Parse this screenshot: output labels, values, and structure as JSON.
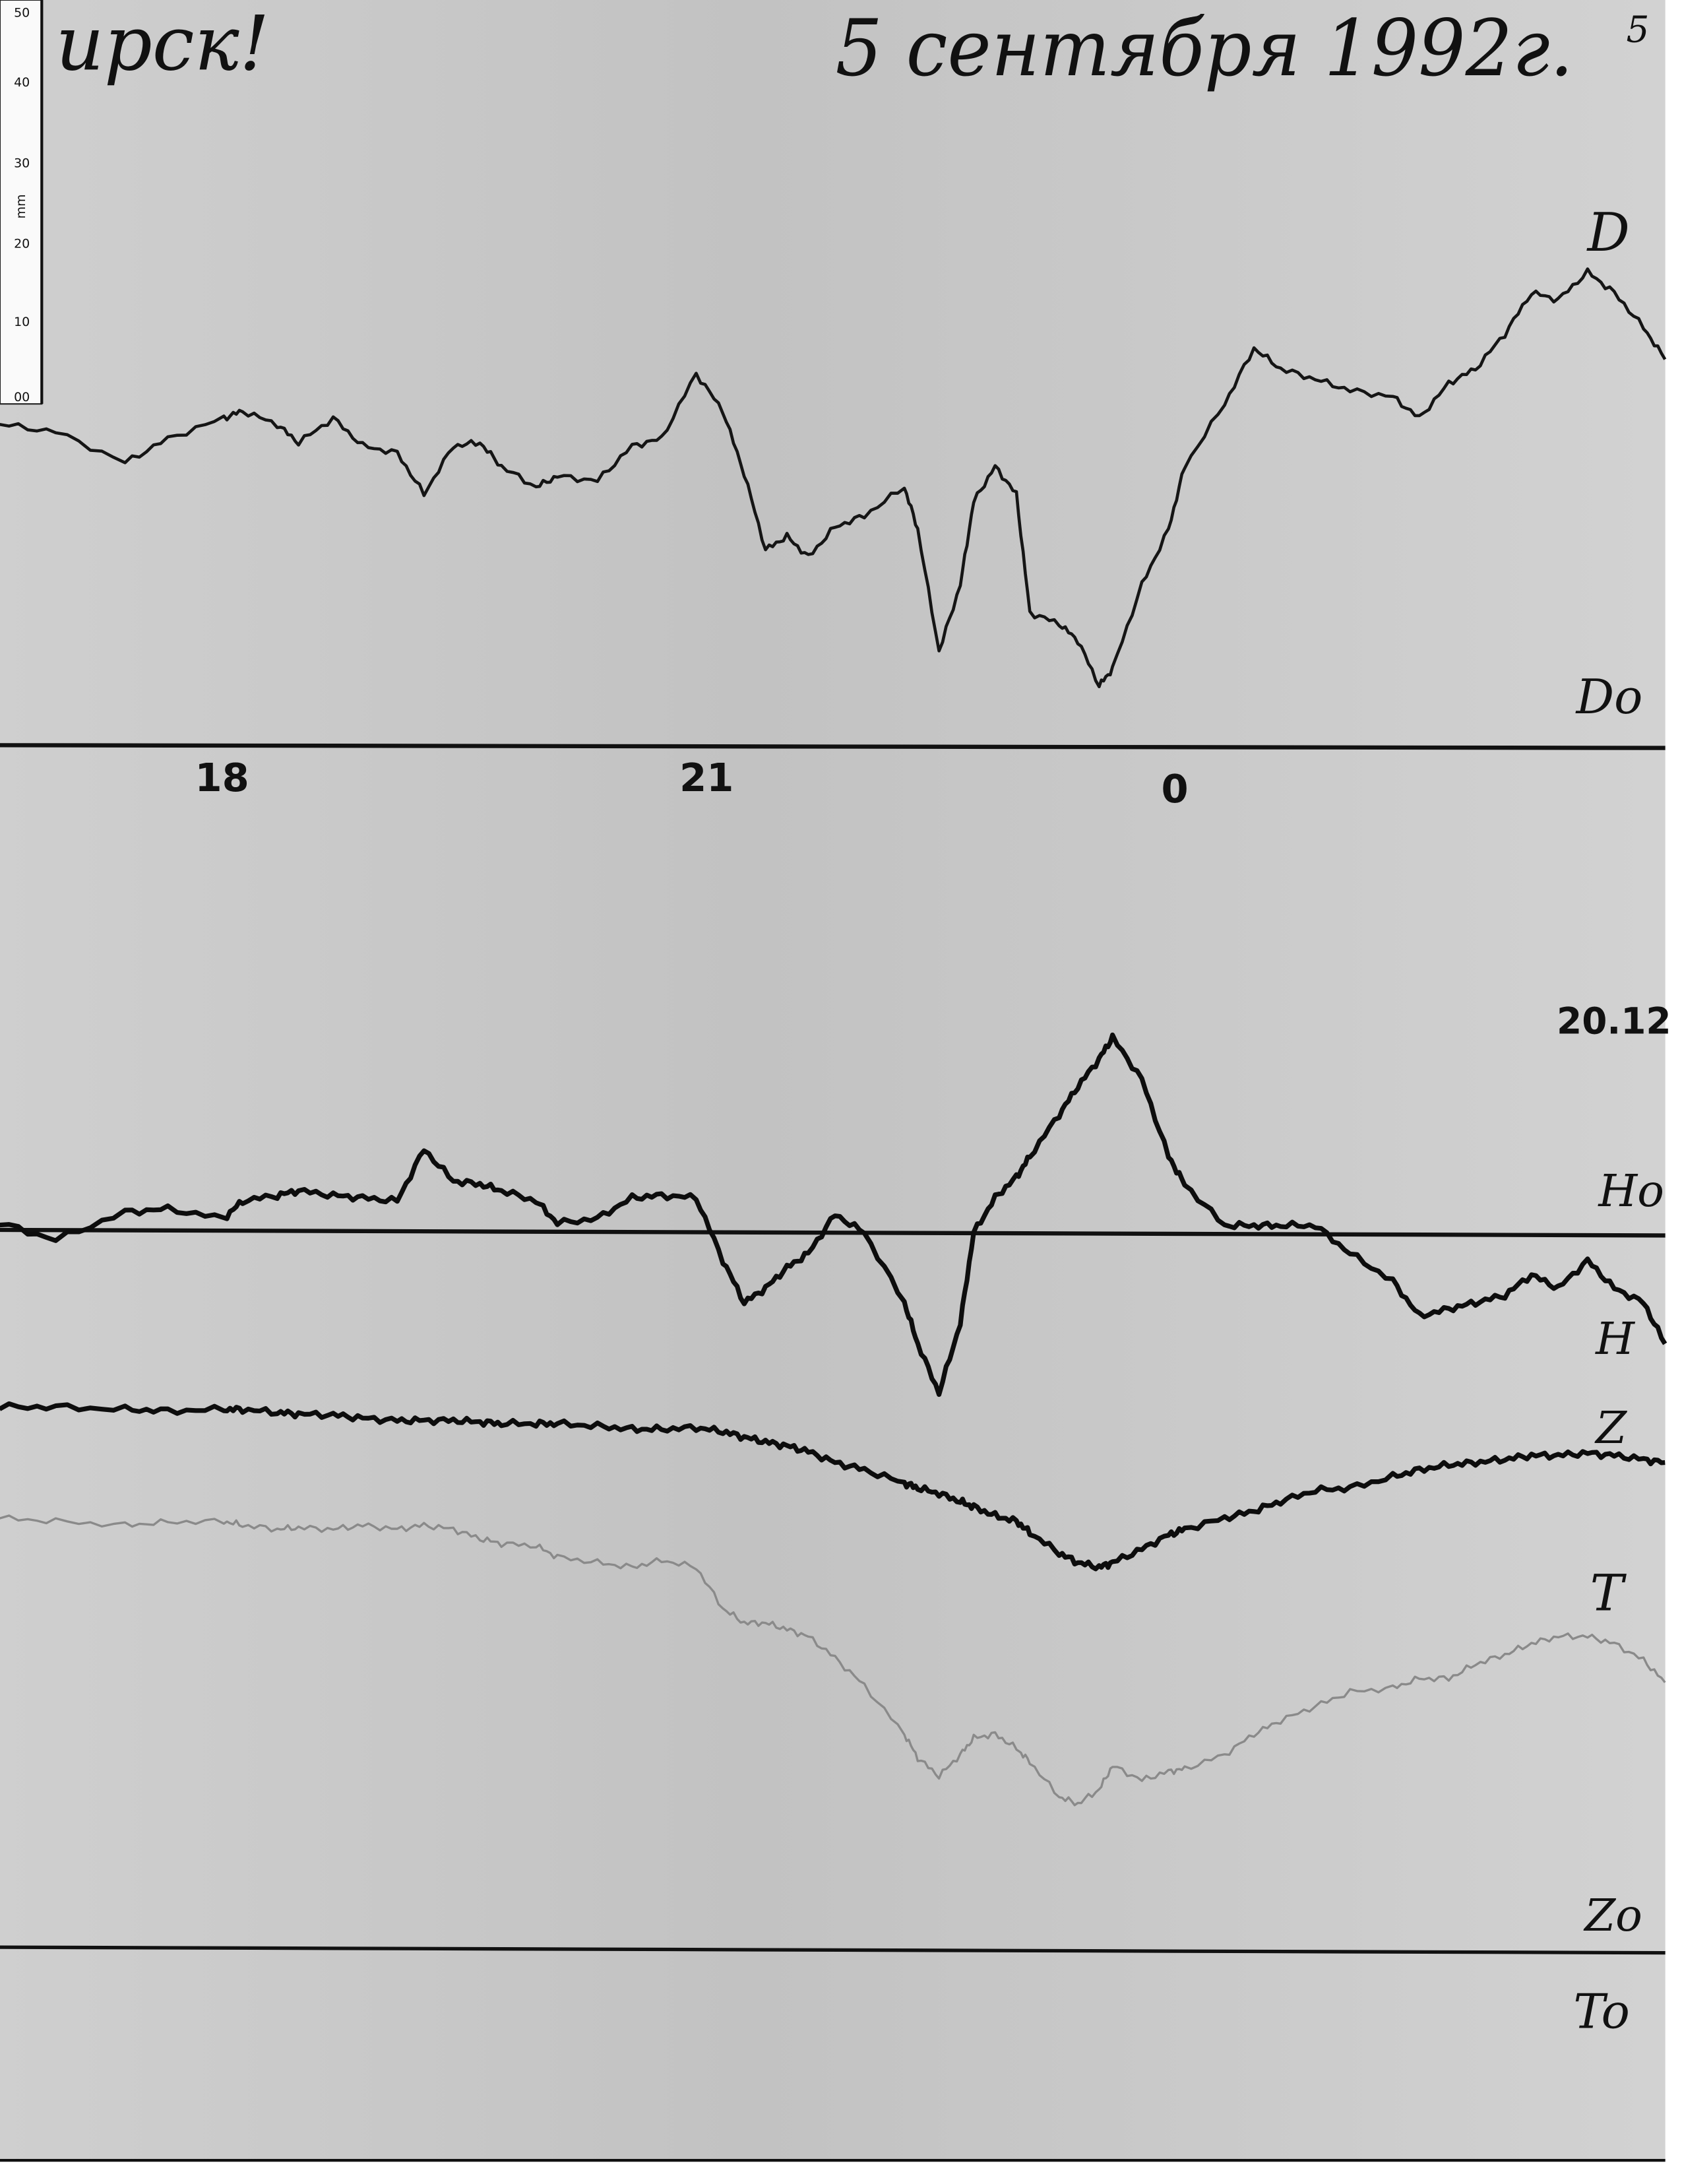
{
  "header": {
    "station_fragment": "ирск!",
    "date": "5 сентября 1992г.",
    "page_number": "5"
  },
  "ruler": {
    "unit": "mm",
    "labels": [
      "50",
      "40",
      "30",
      "20",
      "10",
      "00"
    ]
  },
  "labels": {
    "D": "D",
    "D0": "Do",
    "scale": "20.12",
    "H0": "Ho",
    "H": "H",
    "Z": "Z",
    "T": "T",
    "Z0": "Zo",
    "T0": "To"
  },
  "colors": {
    "paper": "#c9c9c9",
    "ink": "#111111",
    "t_trace": "#8a8a8a"
  },
  "chart_data": {
    "type": "line",
    "title": "5 сентября 1992г.",
    "x_tick_labels": [
      "18",
      "21",
      "0"
    ],
    "y_unit": "mm",
    "grid": false,
    "baselines": [
      "Do",
      "Ho",
      "Zo",
      "To"
    ],
    "time": [
      "16:39",
      "17:00",
      "17:26",
      "17:42",
      "18:03",
      "18:10",
      "18:23",
      "18:31",
      "18:44",
      "18:55",
      "19:08",
      "19:18",
      "19:29",
      "19:39",
      "19:47",
      "20:00",
      "20:08",
      "20:23",
      "20:36",
      "20:47",
      "21:00",
      "21:10",
      "21:18",
      "21:26",
      "21:34",
      "21:42",
      "21:52",
      "22:03",
      "22:18",
      "22:23",
      "22:31",
      "22:39",
      "22:44",
      "22:52",
      "23:00",
      "23:05",
      "23:16",
      "23:23",
      "23:31",
      "23:36",
      "23:47",
      "23:57",
      "00:03",
      "00:18",
      "00:29",
      "00:39",
      "00:52",
      "01:05",
      "01:21",
      "01:31",
      "01:42",
      "01:52",
      "02:03",
      "02:13",
      "02:23",
      "02:34",
      "02:44",
      "02:55",
      "03:03"
    ],
    "series": [
      {
        "name": "D",
        "baseline": "Do",
        "values": [
          40.4,
          39.5,
          35.6,
          38.6,
          41.2,
          42.1,
          40.4,
          38.1,
          41.2,
          37.7,
          36.8,
          31.6,
          37.7,
          38.1,
          35.1,
          32.5,
          33.9,
          33.3,
          37.7,
          38.6,
          46.8,
          42.1,
          34.2,
          24.6,
          26.3,
          23.7,
          27.5,
          28.9,
          32.5,
          27.2,
          11.8,
          20.2,
          30.7,
          35.1,
          31.6,
          16.7,
          15.3,
          13.2,
          7.5,
          9.6,
          20.2,
          27.2,
          35.1,
          43.0,
          50.0,
          47.4,
          46.1,
          44.7,
          43.9,
          41.2,
          45.6,
          47.4,
          51.8,
          57.0,
          56.1,
          59.6,
          57.0,
          52.6,
          48.6
        ]
      },
      {
        "name": "H",
        "baseline": "Ho",
        "values": [
          1.2,
          -0.9,
          2.6,
          3.0,
          1.8,
          4.0,
          4.7,
          5.3,
          4.7,
          4.4,
          4.0,
          10.5,
          6.5,
          6.1,
          5.3,
          4.0,
          1.2,
          1.8,
          4.4,
          4.7,
          4.4,
          -3.5,
          -8.8,
          -7.0,
          -4.4,
          -2.6,
          2.3,
          0,
          -8.8,
          -14.0,
          -20.2,
          -11.4,
          0,
          4.4,
          7.0,
          9.6,
          14.9,
          18.4,
          21.9,
          24.6,
          19.3,
          9.6,
          6.1,
          0.9,
          0.9,
          0.9,
          0.9,
          -2.6,
          -6.1,
          -10.5,
          -9.6,
          -8.8,
          -7.9,
          -5.3,
          -7.0,
          -3.5,
          -7.0,
          -8.8,
          -14.0
        ]
      },
      {
        "name": "Z",
        "baseline": "Zo",
        "values": [
          68.4,
          68.4,
          68.1,
          67.9,
          68.1,
          68.1,
          67.7,
          67.5,
          67.4,
          67.0,
          66.7,
          66.7,
          66.7,
          66.5,
          66.3,
          66.3,
          66.3,
          66.0,
          65.6,
          65.6,
          65.8,
          65.3,
          64.6,
          64.0,
          63.5,
          62.8,
          61.4,
          60.5,
          58.8,
          58.2,
          57.5,
          56.5,
          55.8,
          54.7,
          54.0,
          52.6,
          50.0,
          48.8,
          48.2,
          48.8,
          50.5,
          52.3,
          53.0,
          54.4,
          55.3,
          56.5,
          57.9,
          58.2,
          59.6,
          60.5,
          61.1,
          61.4,
          61.8,
          62.3,
          62.3,
          62.6,
          62.3,
          61.8,
          61.4
        ]
      },
      {
        "name": "T",
        "baseline": "To",
        "values": [
          54.4,
          54.0,
          53.5,
          53.9,
          54.0,
          53.5,
          53.0,
          53.2,
          53.0,
          53.5,
          53.0,
          53.5,
          53.0,
          51.8,
          51.2,
          50.9,
          49.5,
          48.8,
          48.2,
          49.1,
          48.2,
          43.0,
          41.2,
          41.2,
          40.4,
          39.5,
          36.8,
          33.3,
          27.2,
          24.2,
          21.9,
          24.6,
          26.7,
          27.2,
          25.4,
          23.7,
          19.3,
          18.4,
          20.2,
          23.2,
          21.4,
          22.5,
          22.8,
          24.6,
          27.2,
          28.9,
          30.7,
          32.5,
          33.0,
          34.2,
          34.2,
          36.0,
          37.2,
          38.6,
          39.5,
          39.5,
          38.6,
          36.5,
          33.7
        ]
      }
    ]
  }
}
